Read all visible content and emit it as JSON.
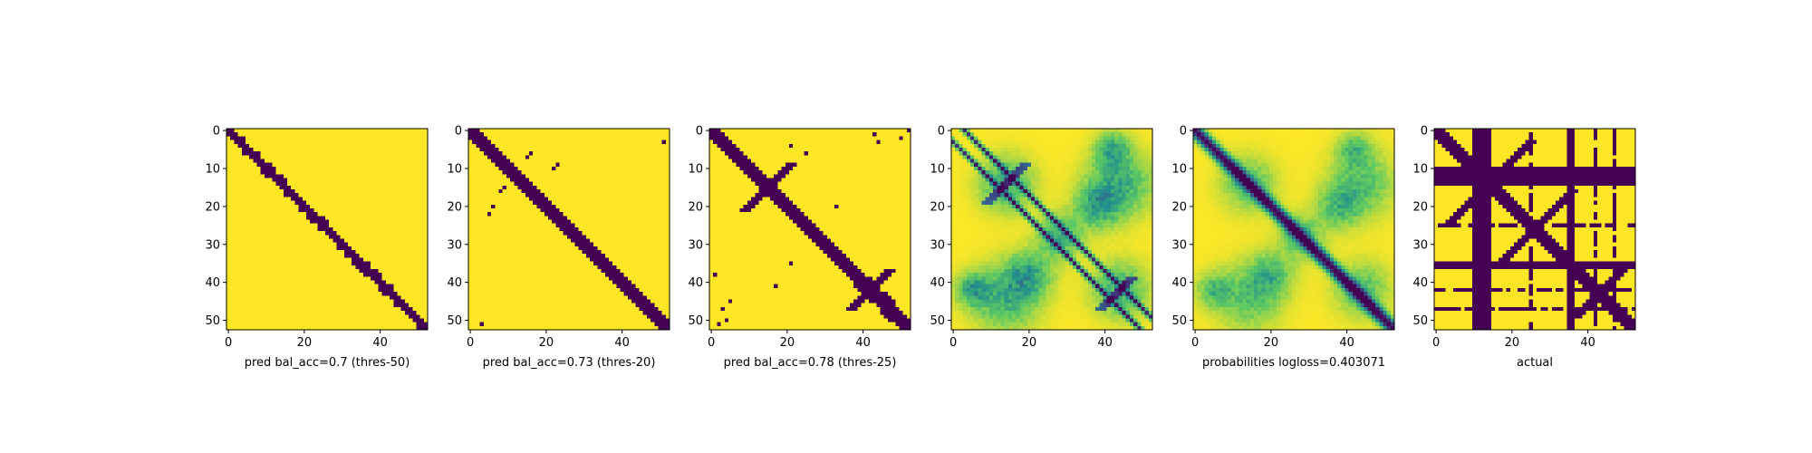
{
  "colors": {
    "low": "#440154",
    "mid1": "#3b528b",
    "mid2": "#21918c",
    "mid3": "#5ec962",
    "high": "#fde725",
    "axis": "#000000",
    "background": "#ffffff"
  },
  "chart_data": [
    {
      "type": "heatmap",
      "title": "",
      "xlabel": "pred bal_acc=0.7 (thres-50)",
      "ylabel": "",
      "size": 53,
      "xlim": [
        0,
        52
      ],
      "ylim": [
        52,
        0
      ],
      "xticks": [
        0,
        20,
        40
      ],
      "yticks": [
        0,
        10,
        20,
        30,
        40,
        50
      ],
      "value_range": [
        0,
        1
      ],
      "pattern": "binary diagonal band (dark = 0) on yellow background (1), band half-width about 2 cells"
    },
    {
      "type": "heatmap",
      "title": "",
      "xlabel": "pred bal_acc=0.73 (thres-20)",
      "ylabel": "",
      "size": 53,
      "xlim": [
        0,
        52
      ],
      "ylim": [
        52,
        0
      ],
      "xticks": [
        0,
        20,
        40
      ],
      "yticks": [
        0,
        10,
        20,
        30,
        40,
        50
      ],
      "value_range": [
        0,
        1
      ],
      "pattern": "binary diagonal band with a few scattered dark cells near the band"
    },
    {
      "type": "heatmap",
      "title": "",
      "xlabel": "pred bal_acc=0.78 (thres-25)",
      "ylabel": "",
      "size": 53,
      "xlim": [
        0,
        52
      ],
      "ylim": [
        52,
        0
      ],
      "xticks": [
        0,
        20,
        40
      ],
      "yticks": [
        0,
        10,
        20,
        30,
        40,
        50
      ],
      "value_range": [
        0,
        1
      ],
      "pattern": "binary diagonal band with anti-diagonal crossings near (15,15) and (42,42) plus scattered dark cells"
    },
    {
      "type": "heatmap",
      "title": "",
      "xlabel": "",
      "ylabel": "",
      "size": 53,
      "xlim": [
        0,
        52
      ],
      "ylim": [
        52,
        0
      ],
      "xticks": [
        0,
        20,
        40
      ],
      "yticks": [
        0,
        10,
        20,
        30,
        40,
        50
      ],
      "value_range": [
        0,
        1
      ],
      "pattern": "continuous: two parallel diagonal lines offset from the main diagonal, green blobs in off-diagonal blocks, dark blue crossings near (14,14) and (42,45)"
    },
    {
      "type": "heatmap",
      "title": "",
      "xlabel": "probabilities logloss=0.403071",
      "ylabel": "",
      "size": 53,
      "xlim": [
        0,
        52
      ],
      "ylim": [
        52,
        0
      ],
      "xticks": [
        0,
        20,
        40
      ],
      "yticks": [
        0,
        10,
        20,
        30,
        40,
        50
      ],
      "value_range": [
        0,
        1
      ],
      "pattern": "continuous: dark main diagonal band with teal edges, green anti-diagonal blobs in off-diagonal blocks"
    },
    {
      "type": "heatmap",
      "title": "",
      "xlabel": "actual",
      "ylabel": "",
      "size": 53,
      "xlim": [
        0,
        52
      ],
      "ylim": [
        52,
        0
      ],
      "xticks": [
        0,
        20,
        40
      ],
      "yticks": [
        0,
        10,
        20,
        30,
        40,
        50
      ],
      "value_range": [
        0,
        1
      ],
      "pattern": "binary: full dark rows 10-14 and 35-36, partial dark rows 25, 42, 47, full dark columns 10-14 and 35-36, partial dark columns 25, 42, 47, diagonal band with anti-diagonal arms",
      "dark_rows_full": [
        10,
        11,
        12,
        13,
        14,
        35,
        36
      ],
      "dark_rows_partial": [
        25,
        42,
        47
      ],
      "dark_cols_full": [
        10,
        11,
        12,
        13,
        14,
        35,
        36
      ],
      "dark_cols_partial": [
        25,
        42,
        47
      ]
    }
  ]
}
